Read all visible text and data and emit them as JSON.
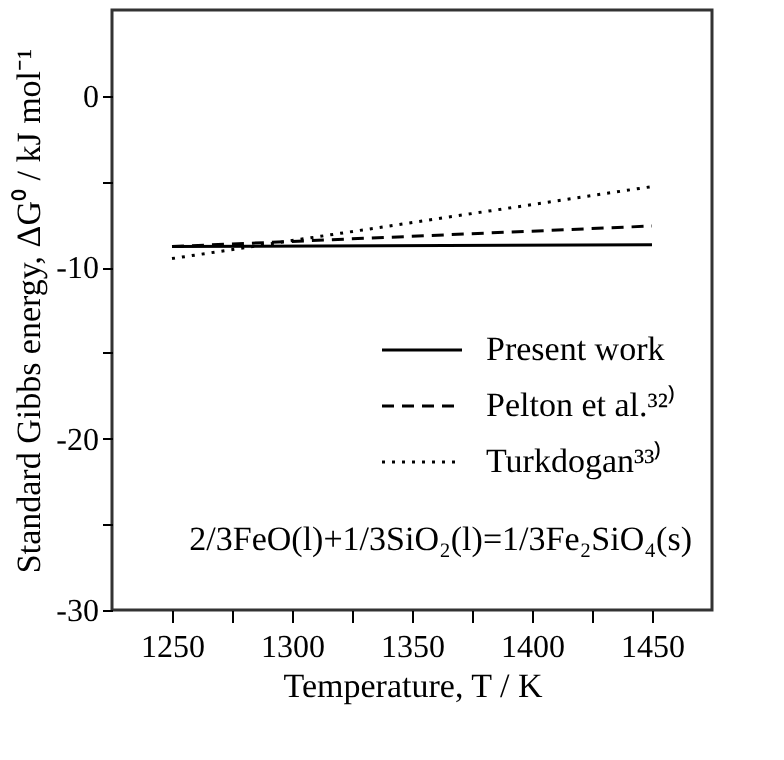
{
  "chart_data": {
    "type": "line",
    "xlabel": "Temperature, T / K",
    "ylabel": "Standard Gibbs energy, ΔG⁰ / kJ mol⁻¹",
    "x": [
      1250,
      1450
    ],
    "series": [
      {
        "name": "Present work",
        "color": "#000000",
        "line_style": "solid",
        "values": [
          -8.8,
          -8.7
        ]
      },
      {
        "name": "Pelton et al.³²⁾",
        "color": "#000000",
        "line_style": "dashed",
        "values": [
          -8.8,
          -7.6
        ]
      },
      {
        "name": "Turkdogan³³⁾",
        "color": "#000000",
        "line_style": "dotted",
        "values": [
          -9.5,
          -5.3
        ]
      }
    ],
    "xlim": [
      1225,
      1475
    ],
    "xticks": [
      1250,
      {
        "value": 1275,
        "label": null
      },
      1300,
      {
        "value": 1325,
        "label": null
      },
      1350,
      {
        "value": 1375,
        "label": null
      },
      1400,
      {
        "value": 1425,
        "label": null
      },
      1450
    ],
    "ylim": [
      -30,
      5
    ],
    "yticks": [
      -30,
      {
        "value": -25,
        "label": null
      },
      -20,
      {
        "value": -15,
        "label": null
      },
      -10,
      {
        "value": -5,
        "label": null
      },
      0
    ],
    "annotations": [
      "2/3FeO(l)+1/3SiO₂(l)=1/3Fe₂SiO₄(s)"
    ],
    "legend": "bottom right",
    "grid": false
  }
}
